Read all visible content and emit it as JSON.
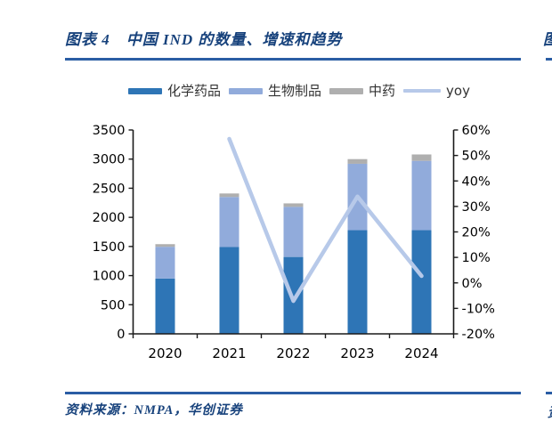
{
  "page": {
    "title": "图表 4　中国 IND 的数量、增速和趋势",
    "title_fragment_right": "图",
    "source": "资料来源：NMPA，华创证券",
    "source_fragment_right": "资",
    "colors": {
      "navy_text": "#17427C",
      "rule_blue": "#2A5DA4",
      "axis_line": "#1A1A1A"
    }
  },
  "chart_data": {
    "type": "bar",
    "subtype": "stacked-bar-with-line-combo",
    "title": "中国 IND 的数量、增速和趋势",
    "categories": [
      "2020",
      "2021",
      "2022",
      "2023",
      "2024"
    ],
    "series": [
      {
        "name": "化学药品",
        "type": "bar",
        "color": "#2E75B6",
        "axis": "left",
        "values": [
          950,
          1490,
          1320,
          1780,
          1780
        ]
      },
      {
        "name": "生物制品",
        "type": "bar",
        "color": "#91ABDB",
        "axis": "left",
        "values": [
          545,
          860,
          860,
          1140,
          1190
        ]
      },
      {
        "name": "中药",
        "type": "bar",
        "color": "#AFAFAF",
        "axis": "left",
        "values": [
          45,
          60,
          60,
          80,
          110
        ]
      },
      {
        "name": "yoy",
        "type": "line",
        "color": "#B7C9E9",
        "axis": "right",
        "values": [
          null,
          56.5,
          -7.1,
          33.9,
          2.7
        ]
      }
    ],
    "totals": [
      1540,
      2410,
      2240,
      3000,
      3080
    ],
    "left_axis": {
      "min": 0,
      "max": 3500,
      "step": 500,
      "tick_labels": [
        "0",
        "500",
        "1000",
        "1500",
        "2000",
        "2500",
        "3000",
        "3500"
      ]
    },
    "right_axis": {
      "min": -20,
      "max": 60,
      "step": 10,
      "tick_labels": [
        "-20%",
        "-10%",
        "0%",
        "10%",
        "20%",
        "30%",
        "40%",
        "50%",
        "60%"
      ]
    },
    "legend_position": "top",
    "grid": false
  }
}
